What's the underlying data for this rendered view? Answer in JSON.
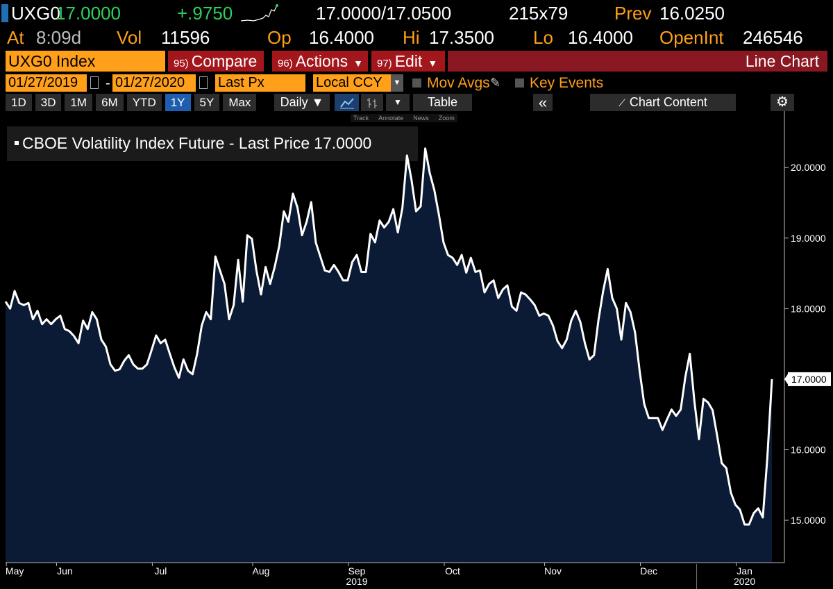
{
  "header": {
    "ticker": "UXG0",
    "last": "17.0000",
    "change": "+.9750",
    "bid_ask": "17.0000/17.0500",
    "size": "215x79",
    "prev_label": "Prev",
    "prev": "16.0250",
    "time_label": "At",
    "time": "8:09d",
    "vol_label": "Vol",
    "vol": "11596",
    "open_label": "Op",
    "open": "16.4000",
    "high_label": "Hi",
    "high": "17.3500",
    "low_label": "Lo",
    "low": "16.4000",
    "oi_label": "OpenInt",
    "oi": "246546"
  },
  "toolbar": {
    "security": "UXG0 Index",
    "buttons": [
      {
        "num": "95)",
        "label": "Compare"
      },
      {
        "num": "96)",
        "label": "Actions"
      },
      {
        "num": "97)",
        "label": "Edit"
      }
    ],
    "view": "Line Chart"
  },
  "controls": {
    "start": "01/27/2019",
    "sep": "-",
    "end": "01/27/2020",
    "field": "Last Px",
    "currency": "Local CCY",
    "mov_avgs": "Mov Avgs",
    "key_events": "Key Events"
  },
  "periods": [
    "1D",
    "3D",
    "1M",
    "6M",
    "YTD",
    "1Y",
    "5Y",
    "Max"
  ],
  "active_period": "1Y",
  "frequency": "Daily",
  "table": "Table",
  "chart_content": "Chart Content",
  "tools": [
    "Track",
    "Annotate",
    "News",
    "Zoom"
  ],
  "chart_data": {
    "type": "area",
    "legend_value": "17.0000",
    "last_value_label": "17.0000",
    "ylim": [
      14.4,
      20.75
    ],
    "yticks": [
      {
        "value": 15,
        "label": "15.0000"
      },
      {
        "value": 16,
        "label": "16.0000"
      },
      {
        "value": 17,
        "label": "17.0000"
      },
      {
        "value": 18,
        "label": "18.0000"
      },
      {
        "value": 19,
        "label": "19.0000"
      },
      {
        "value": 20,
        "label": "20.0000"
      }
    ],
    "x_groups": [
      {
        "label": "2019",
        "month": "Sep"
      },
      {
        "label": "2020",
        "month": "Jan"
      }
    ],
    "categories": [
      null,
      null,
      "May",
      null,
      null,
      null,
      null,
      null,
      null,
      null,
      null,
      null,
      null,
      "Jun",
      null,
      null,
      null,
      null,
      null,
      null,
      null,
      null,
      null,
      null,
      null,
      null,
      null,
      null,
      null,
      null,
      null,
      null,
      null,
      null,
      "Jul",
      null,
      null,
      null,
      null,
      null,
      null,
      null,
      null,
      null,
      null,
      null,
      null,
      null,
      null,
      null,
      null,
      null,
      null,
      null,
      null,
      null,
      "Aug",
      null,
      null,
      null,
      null,
      null,
      null,
      null,
      null,
      null,
      null,
      null,
      null,
      null,
      null,
      null,
      null,
      null,
      null,
      null,
      null,
      "Sep",
      null,
      null,
      null,
      null,
      null,
      null,
      null,
      null,
      null,
      null,
      null,
      null,
      null,
      null,
      null,
      null,
      null,
      null,
      null,
      null,
      "Oct",
      null,
      null,
      null,
      null,
      null,
      null,
      null,
      null,
      null,
      null,
      null,
      null,
      null,
      null,
      null,
      null,
      null,
      null,
      null,
      null,
      null,
      "Nov",
      null,
      null,
      null,
      null,
      null,
      null,
      null,
      null,
      null,
      null,
      null,
      null,
      null,
      null,
      null,
      null,
      null,
      null,
      null,
      null,
      "Dec",
      null,
      null,
      null,
      null,
      null,
      null,
      null,
      null,
      null,
      null,
      null,
      null,
      null,
      null,
      null,
      null,
      null,
      null,
      null,
      null,
      "Jan",
      null,
      null,
      null,
      null,
      null,
      null
    ],
    "series": [
      {
        "name": "CBOE Volatility Index Future - Last Price",
        "color": "#ffffff",
        "fill": "#0b1b36",
        "values": [
          18.1,
          18.0,
          18.25,
          18.08,
          18.05,
          18.08,
          17.85,
          17.97,
          17.78,
          17.85,
          17.78,
          17.85,
          17.9,
          17.71,
          17.68,
          17.61,
          17.51,
          17.83,
          17.71,
          17.95,
          17.85,
          17.56,
          17.46,
          17.21,
          17.12,
          17.14,
          17.26,
          17.34,
          17.21,
          17.15,
          17.15,
          17.21,
          17.41,
          17.62,
          17.51,
          17.56,
          17.36,
          17.17,
          17.02,
          17.28,
          17.12,
          17.07,
          17.36,
          17.76,
          17.95,
          17.85,
          18.74,
          18.54,
          18.35,
          17.85,
          18.05,
          18.69,
          18.1,
          19.04,
          18.99,
          18.54,
          18.2,
          18.59,
          18.35,
          18.59,
          18.89,
          19.38,
          19.23,
          19.63,
          19.43,
          19.04,
          19.23,
          19.51,
          18.94,
          18.74,
          18.54,
          18.52,
          18.62,
          18.52,
          18.4,
          18.4,
          18.66,
          18.76,
          18.52,
          18.52,
          19.06,
          18.94,
          19.25,
          19.15,
          19.23,
          19.41,
          19.08,
          19.43,
          20.17,
          19.82,
          19.38,
          19.45,
          20.27,
          19.92,
          19.68,
          19.33,
          18.94,
          18.76,
          18.72,
          18.62,
          18.76,
          18.51,
          18.72,
          18.52,
          18.54,
          18.23,
          18.35,
          18.4,
          18.15,
          18.27,
          18.33,
          18.03,
          17.97,
          18.23,
          18.2,
          18.13,
          18.05,
          17.9,
          17.93,
          17.9,
          17.76,
          17.54,
          17.44,
          17.56,
          17.83,
          17.97,
          17.81,
          17.51,
          17.28,
          17.34,
          17.85,
          18.25,
          18.56,
          18.15,
          18.0,
          17.56,
          18.08,
          17.95,
          17.66,
          17.12,
          16.65,
          16.45,
          16.45,
          16.45,
          16.28,
          16.43,
          16.57,
          16.48,
          16.57,
          17.02,
          17.36,
          16.69,
          16.15,
          16.72,
          16.67,
          16.56,
          16.2,
          15.81,
          15.74,
          15.39,
          15.22,
          15.15,
          14.94,
          14.94,
          15.1,
          15.17,
          15.04,
          15.89,
          17.0
        ]
      }
    ]
  }
}
